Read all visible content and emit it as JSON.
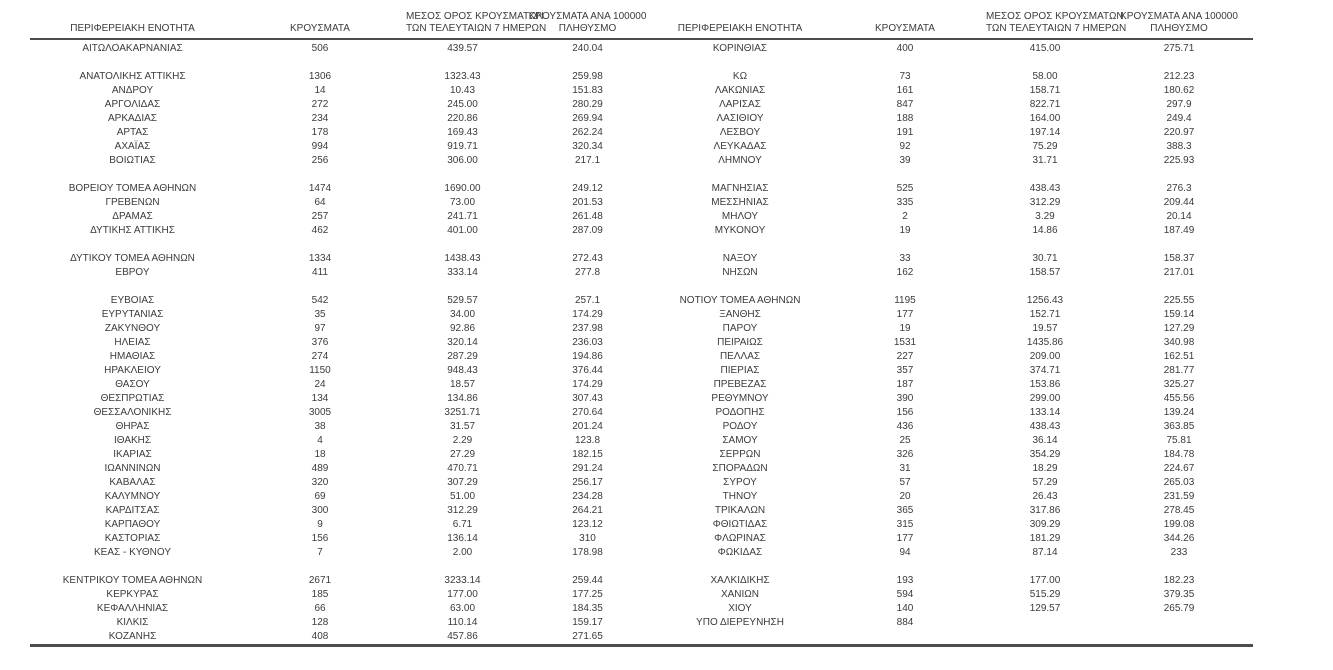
{
  "table": {
    "title_semantic": "cases-by-regional-unit",
    "colors": {
      "text": "#3b3b3b",
      "border": "#4d4d4d",
      "background": "#ffffff"
    },
    "headers": {
      "region": "ΠΕΡΙΦΕΡΕΙΑΚΗ ΕΝΟΤΗΤΑ",
      "cases": "ΚΡΟΥΣΜΑΤΑ",
      "avg7_line1": "ΜΕΣΟΣ ΟΡΟΣ ΚΡΟΥΣΜΑΤΩΝ",
      "avg7_line2": "ΤΩΝ ΤΕΛΕΥΤΑΙΩΝ 7 ΗΜΕΡΩΝ",
      "per100k_line1": "ΚΡΟΥΣΜΑΤΑ ΑΝΑ 100000",
      "per100k_line2": "ΠΛΗΘΥΣΜΟ"
    },
    "rows": [
      [
        "ΑΙΤΩΛΟΑΚΑΡΝΑΝΙΑΣ",
        "506",
        "439.57",
        "240.04",
        "ΚΟΡΙΝΘΙΑΣ",
        "400",
        "415.00",
        "275.71"
      ],
      [
        "",
        "",
        "",
        "",
        "",
        "",
        "",
        ""
      ],
      [
        "ΑΝΑΤΟΛΙΚΗΣ ΑΤΤΙΚΗΣ",
        "1306",
        "1323.43",
        "259.98",
        "ΚΩ",
        "73",
        "58.00",
        "212.23"
      ],
      [
        "ΑΝΔΡΟΥ",
        "14",
        "10.43",
        "151.83",
        "ΛΑΚΩΝΙΑΣ",
        "161",
        "158.71",
        "180.62"
      ],
      [
        "ΑΡΓΟΛΙΔΑΣ",
        "272",
        "245.00",
        "280.29",
        "ΛΑΡΙΣΑΣ",
        "847",
        "822.71",
        "297.9"
      ],
      [
        "ΑΡΚΑΔΙΑΣ",
        "234",
        "220.86",
        "269.94",
        "ΛΑΣΙΘΙΟΥ",
        "188",
        "164.00",
        "249.4"
      ],
      [
        "ΑΡΤΑΣ",
        "178",
        "169.43",
        "262.24",
        "ΛΕΣΒΟΥ",
        "191",
        "197.14",
        "220.97"
      ],
      [
        "ΑΧΑΪΑΣ",
        "994",
        "919.71",
        "320.34",
        "ΛΕΥΚΑΔΑΣ",
        "92",
        "75.29",
        "388.3"
      ],
      [
        "ΒΟΙΩΤΙΑΣ",
        "256",
        "306.00",
        "217.1",
        "ΛΗΜΝΟΥ",
        "39",
        "31.71",
        "225.93"
      ],
      [
        "",
        "",
        "",
        "",
        "",
        "",
        "",
        ""
      ],
      [
        "ΒΟΡΕΙΟΥ ΤΟΜΕΑ ΑΘΗΝΩΝ",
        "1474",
        "1690.00",
        "249.12",
        "ΜΑΓΝΗΣΙΑΣ",
        "525",
        "438.43",
        "276.3"
      ],
      [
        "ΓΡΕΒΕΝΩΝ",
        "64",
        "73.00",
        "201.53",
        "ΜΕΣΣΗΝΙΑΣ",
        "335",
        "312.29",
        "209.44"
      ],
      [
        "ΔΡΑΜΑΣ",
        "257",
        "241.71",
        "261.48",
        "ΜΗΛΟΥ",
        "2",
        "3.29",
        "20.14"
      ],
      [
        "ΔΥΤΙΚΗΣ ΑΤΤΙΚΗΣ",
        "462",
        "401.00",
        "287.09",
        "ΜΥΚΟΝΟΥ",
        "19",
        "14.86",
        "187.49"
      ],
      [
        "",
        "",
        "",
        "",
        "",
        "",
        "",
        ""
      ],
      [
        "ΔΥΤΙΚΟΥ ΤΟΜΕΑ ΑΘΗΝΩΝ",
        "1334",
        "1438.43",
        "272.43",
        "ΝΑΞΟΥ",
        "33",
        "30.71",
        "158.37"
      ],
      [
        "ΕΒΡΟΥ",
        "411",
        "333.14",
        "277.8",
        "ΝΗΣΩΝ",
        "162",
        "158.57",
        "217.01"
      ],
      [
        "",
        "",
        "",
        "",
        "",
        "",
        "",
        ""
      ],
      [
        "ΕΥΒΟΙΑΣ",
        "542",
        "529.57",
        "257.1",
        "ΝΟΤΙΟΥ ΤΟΜΕΑ ΑΘΗΝΩΝ",
        "1195",
        "1256.43",
        "225.55"
      ],
      [
        "ΕΥΡΥΤΑΝΙΑΣ",
        "35",
        "34.00",
        "174.29",
        "ΞΑΝΘΗΣ",
        "177",
        "152.71",
        "159.14"
      ],
      [
        "ΖΑΚΥΝΘΟΥ",
        "97",
        "92.86",
        "237.98",
        "ΠΑΡΟΥ",
        "19",
        "19.57",
        "127.29"
      ],
      [
        "ΗΛΕΙΑΣ",
        "376",
        "320.14",
        "236.03",
        "ΠΕΙΡΑΙΩΣ",
        "1531",
        "1435.86",
        "340.98"
      ],
      [
        "ΗΜΑΘΙΑΣ",
        "274",
        "287.29",
        "194.86",
        "ΠΕΛΛΑΣ",
        "227",
        "209.00",
        "162.51"
      ],
      [
        "ΗΡΑΚΛΕΙΟΥ",
        "1150",
        "948.43",
        "376.44",
        "ΠΙΕΡΙΑΣ",
        "357",
        "374.71",
        "281.77"
      ],
      [
        "ΘΑΣΟΥ",
        "24",
        "18.57",
        "174.29",
        "ΠΡΕΒΕΖΑΣ",
        "187",
        "153.86",
        "325.27"
      ],
      [
        "ΘΕΣΠΡΩΤΙΑΣ",
        "134",
        "134.86",
        "307.43",
        "ΡΕΘΥΜΝΟΥ",
        "390",
        "299.00",
        "455.56"
      ],
      [
        "ΘΕΣΣΑΛΟΝΙΚΗΣ",
        "3005",
        "3251.71",
        "270.64",
        "ΡΟΔΟΠΗΣ",
        "156",
        "133.14",
        "139.24"
      ],
      [
        "ΘΗΡΑΣ",
        "38",
        "31.57",
        "201.24",
        "ΡΟΔΟΥ",
        "436",
        "438.43",
        "363.85"
      ],
      [
        "ΙΘΑΚΗΣ",
        "4",
        "2.29",
        "123.8",
        "ΣΑΜΟΥ",
        "25",
        "36.14",
        "75.81"
      ],
      [
        "ΙΚΑΡΙΑΣ",
        "18",
        "27.29",
        "182.15",
        "ΣΕΡΡΩΝ",
        "326",
        "354.29",
        "184.78"
      ],
      [
        "ΙΩΑΝΝΙΝΩΝ",
        "489",
        "470.71",
        "291.24",
        "ΣΠΟΡΑΔΩΝ",
        "31",
        "18.29",
        "224.67"
      ],
      [
        "ΚΑΒΑΛΑΣ",
        "320",
        "307.29",
        "256.17",
        "ΣΥΡΟΥ",
        "57",
        "57.29",
        "265.03"
      ],
      [
        "ΚΑΛΥΜΝΟΥ",
        "69",
        "51.00",
        "234.28",
        "ΤΗΝΟΥ",
        "20",
        "26.43",
        "231.59"
      ],
      [
        "ΚΑΡΔΙΤΣΑΣ",
        "300",
        "312.29",
        "264.21",
        "ΤΡΙΚΑΛΩΝ",
        "365",
        "317.86",
        "278.45"
      ],
      [
        "ΚΑΡΠΑΘΟΥ",
        "9",
        "6.71",
        "123.12",
        "ΦΘΙΩΤΙΔΑΣ",
        "315",
        "309.29",
        "199.08"
      ],
      [
        "ΚΑΣΤΟΡΙΑΣ",
        "156",
        "136.14",
        "310",
        "ΦΛΩΡΙΝΑΣ",
        "177",
        "181.29",
        "344.26"
      ],
      [
        "ΚΕΑΣ - ΚΥΘΝΟΥ",
        "7",
        "2.00",
        "178.98",
        "ΦΩΚΙΔΑΣ",
        "94",
        "87.14",
        "233"
      ],
      [
        "",
        "",
        "",
        "",
        "",
        "",
        "",
        ""
      ],
      [
        "ΚΕΝΤΡΙΚΟΥ ΤΟΜΕΑ ΑΘΗΝΩΝ",
        "2671",
        "3233.14",
        "259.44",
        "ΧΑΛΚΙΔΙΚΗΣ",
        "193",
        "177.00",
        "182.23"
      ],
      [
        "ΚΕΡΚΥΡΑΣ",
        "185",
        "177.00",
        "177.25",
        "ΧΑΝΙΩΝ",
        "594",
        "515.29",
        "379.35"
      ],
      [
        "ΚΕΦΑΛΛΗΝΙΑΣ",
        "66",
        "63.00",
        "184.35",
        "ΧΙΟΥ",
        "140",
        "129.57",
        "265.79"
      ],
      [
        "ΚΙΛΚΙΣ",
        "128",
        "110.14",
        "159.17",
        "ΥΠΟ ΔΙΕΡΕΥΝΗΣΗ",
        "884",
        "",
        ""
      ],
      [
        "ΚΟΖΑΝΗΣ",
        "408",
        "457.86",
        "271.65",
        "",
        "",
        "",
        ""
      ]
    ]
  }
}
